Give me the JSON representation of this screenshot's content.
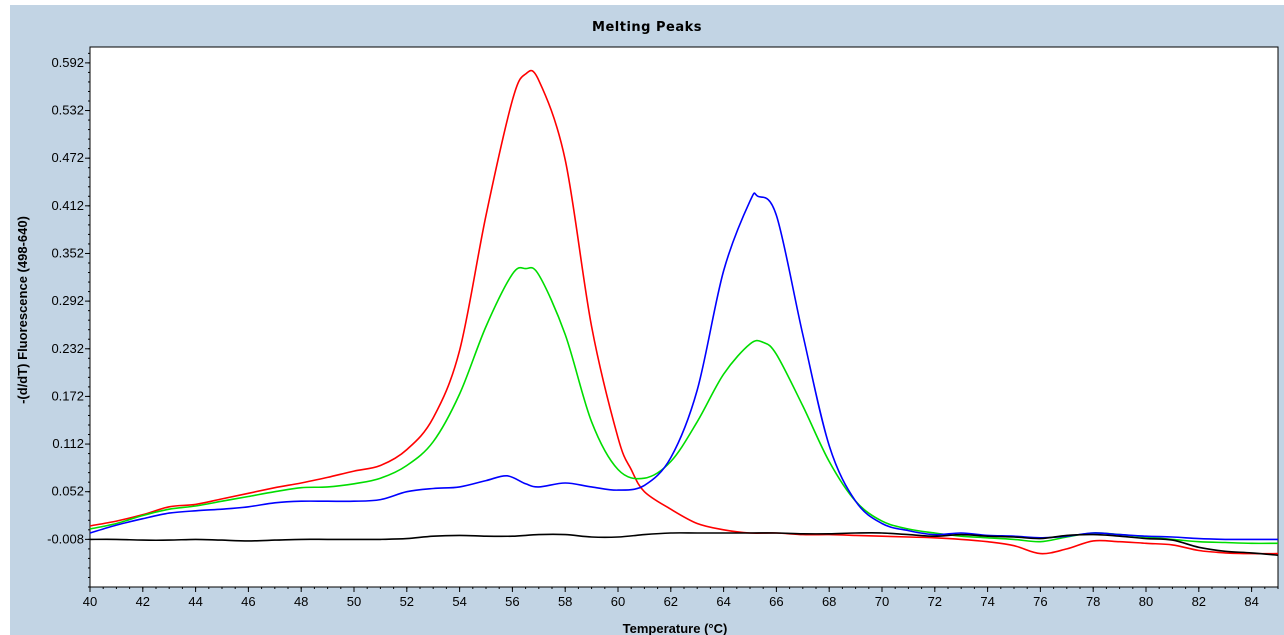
{
  "chart_data": {
    "type": "line",
    "title": "Melting Peaks",
    "xlabel": "Temperature (°C)",
    "ylabel": "-(d/dT) Fluorescence (498-640)",
    "xlim": [
      40,
      85
    ],
    "ylim": [
      -0.068,
      0.612
    ],
    "x_ticks": [
      40,
      42,
      44,
      46,
      48,
      50,
      52,
      54,
      56,
      58,
      60,
      62,
      64,
      66,
      68,
      70,
      72,
      74,
      76,
      78,
      80,
      82,
      84
    ],
    "y_ticks": [
      "-0.008",
      "0.052",
      "0.112",
      "0.172",
      "0.232",
      "0.292",
      "0.352",
      "0.412",
      "0.472",
      "0.532",
      "0.592"
    ],
    "grid": false,
    "legend": "none",
    "series": [
      {
        "color": "#ff0000",
        "points": [
          [
            40,
            0.009
          ],
          [
            41,
            0.015
          ],
          [
            42,
            0.023
          ],
          [
            43,
            0.033
          ],
          [
            44,
            0.036
          ],
          [
            45,
            0.043
          ],
          [
            46,
            0.05
          ],
          [
            47,
            0.057
          ],
          [
            48,
            0.063
          ],
          [
            49,
            0.07
          ],
          [
            50,
            0.078
          ],
          [
            51,
            0.085
          ],
          [
            52,
            0.105
          ],
          [
            53,
            0.145
          ],
          [
            54,
            0.23
          ],
          [
            55,
            0.4
          ],
          [
            56,
            0.545
          ],
          [
            56.5,
            0.578
          ],
          [
            57,
            0.57
          ],
          [
            58,
            0.47
          ],
          [
            59,
            0.26
          ],
          [
            60,
            0.12
          ],
          [
            60.5,
            0.08
          ],
          [
            61,
            0.052
          ],
          [
            62,
            0.03
          ],
          [
            63,
            0.012
          ],
          [
            64,
            0.004
          ],
          [
            65,
            0.0
          ],
          [
            66,
            0.0
          ],
          [
            67,
            -0.002
          ],
          [
            68,
            -0.002
          ],
          [
            69,
            -0.003
          ],
          [
            70,
            -0.004
          ],
          [
            71,
            -0.005
          ],
          [
            72,
            -0.006
          ],
          [
            73,
            -0.008
          ],
          [
            74,
            -0.011
          ],
          [
            75,
            -0.016
          ],
          [
            76,
            -0.026
          ],
          [
            77,
            -0.02
          ],
          [
            78,
            -0.01
          ],
          [
            79,
            -0.011
          ],
          [
            80,
            -0.013
          ],
          [
            81,
            -0.015
          ],
          [
            82,
            -0.022
          ],
          [
            83,
            -0.025
          ],
          [
            84,
            -0.026
          ],
          [
            85,
            -0.026
          ]
        ]
      },
      {
        "color": "#00dd00",
        "points": [
          [
            40,
            0.005
          ],
          [
            41,
            0.012
          ],
          [
            42,
            0.022
          ],
          [
            43,
            0.03
          ],
          [
            44,
            0.034
          ],
          [
            45,
            0.04
          ],
          [
            46,
            0.046
          ],
          [
            47,
            0.052
          ],
          [
            48,
            0.057
          ],
          [
            49,
            0.058
          ],
          [
            50,
            0.062
          ],
          [
            51,
            0.069
          ],
          [
            52,
            0.085
          ],
          [
            53,
            0.115
          ],
          [
            54,
            0.175
          ],
          [
            55,
            0.26
          ],
          [
            56,
            0.326
          ],
          [
            56.5,
            0.333
          ],
          [
            57,
            0.325
          ],
          [
            58,
            0.25
          ],
          [
            59,
            0.14
          ],
          [
            60,
            0.08
          ],
          [
            61,
            0.069
          ],
          [
            62,
            0.09
          ],
          [
            63,
            0.14
          ],
          [
            64,
            0.2
          ],
          [
            65,
            0.238
          ],
          [
            65.5,
            0.24
          ],
          [
            66,
            0.225
          ],
          [
            67,
            0.16
          ],
          [
            68,
            0.09
          ],
          [
            69,
            0.04
          ],
          [
            70,
            0.015
          ],
          [
            71,
            0.005
          ],
          [
            72,
            0.0
          ],
          [
            73,
            -0.004
          ],
          [
            74,
            -0.006
          ],
          [
            75,
            -0.008
          ],
          [
            76,
            -0.011
          ],
          [
            77,
            -0.005
          ],
          [
            78,
            0.0
          ],
          [
            79,
            -0.002
          ],
          [
            80,
            -0.005
          ],
          [
            81,
            -0.008
          ],
          [
            82,
            -0.011
          ],
          [
            83,
            -0.012
          ],
          [
            84,
            -0.013
          ],
          [
            85,
            -0.013
          ]
        ]
      },
      {
        "color": "#0000ff",
        "points": [
          [
            40,
            0.0
          ],
          [
            41,
            0.01
          ],
          [
            42,
            0.018
          ],
          [
            43,
            0.025
          ],
          [
            44,
            0.028
          ],
          [
            45,
            0.03
          ],
          [
            46,
            0.033
          ],
          [
            47,
            0.038
          ],
          [
            48,
            0.04
          ],
          [
            49,
            0.04
          ],
          [
            50,
            0.04
          ],
          [
            51,
            0.042
          ],
          [
            52,
            0.052
          ],
          [
            53,
            0.056
          ],
          [
            54,
            0.058
          ],
          [
            55,
            0.066
          ],
          [
            55.8,
            0.072
          ],
          [
            56.5,
            0.062
          ],
          [
            57,
            0.058
          ],
          [
            58,
            0.063
          ],
          [
            59,
            0.058
          ],
          [
            60,
            0.054
          ],
          [
            61,
            0.06
          ],
          [
            62,
            0.095
          ],
          [
            63,
            0.18
          ],
          [
            64,
            0.33
          ],
          [
            65,
            0.418
          ],
          [
            65.3,
            0.424
          ],
          [
            66,
            0.4
          ],
          [
            67,
            0.25
          ],
          [
            68,
            0.11
          ],
          [
            69,
            0.04
          ],
          [
            70,
            0.012
          ],
          [
            71,
            0.003
          ],
          [
            72,
            -0.002
          ],
          [
            73,
            0.0
          ],
          [
            74,
            -0.003
          ],
          [
            75,
            -0.004
          ],
          [
            76,
            -0.006
          ],
          [
            77,
            -0.004
          ],
          [
            78,
            0.0
          ],
          [
            79,
            -0.002
          ],
          [
            80,
            -0.004
          ],
          [
            81,
            -0.005
          ],
          [
            82,
            -0.007
          ],
          [
            83,
            -0.008
          ],
          [
            84,
            -0.008
          ],
          [
            85,
            -0.008
          ]
        ]
      },
      {
        "color": "#000000",
        "points": [
          [
            40,
            -0.008
          ],
          [
            41,
            -0.008
          ],
          [
            42,
            -0.009
          ],
          [
            43,
            -0.009
          ],
          [
            44,
            -0.008
          ],
          [
            45,
            -0.009
          ],
          [
            46,
            -0.01
          ],
          [
            47,
            -0.009
          ],
          [
            48,
            -0.008
          ],
          [
            49,
            -0.008
          ],
          [
            50,
            -0.008
          ],
          [
            51,
            -0.008
          ],
          [
            52,
            -0.007
          ],
          [
            53,
            -0.004
          ],
          [
            54,
            -0.003
          ],
          [
            55,
            -0.004
          ],
          [
            56,
            -0.004
          ],
          [
            57,
            -0.002
          ],
          [
            58,
            -0.002
          ],
          [
            59,
            -0.005
          ],
          [
            60,
            -0.005
          ],
          [
            61,
            -0.002
          ],
          [
            62,
            0.0
          ],
          [
            63,
            0.0
          ],
          [
            64,
            0.0
          ],
          [
            65,
            0.0
          ],
          [
            66,
            0.0
          ],
          [
            67,
            -0.001
          ],
          [
            68,
            -0.001
          ],
          [
            69,
            0.0
          ],
          [
            70,
            0.0
          ],
          [
            71,
            -0.002
          ],
          [
            72,
            -0.004
          ],
          [
            73,
            -0.002
          ],
          [
            74,
            -0.004
          ],
          [
            75,
            -0.005
          ],
          [
            76,
            -0.007
          ],
          [
            77,
            -0.003
          ],
          [
            78,
            -0.002
          ],
          [
            79,
            -0.004
          ],
          [
            80,
            -0.007
          ],
          [
            81,
            -0.009
          ],
          [
            82,
            -0.018
          ],
          [
            83,
            -0.023
          ],
          [
            84,
            -0.025
          ],
          [
            85,
            -0.028
          ]
        ]
      }
    ]
  }
}
